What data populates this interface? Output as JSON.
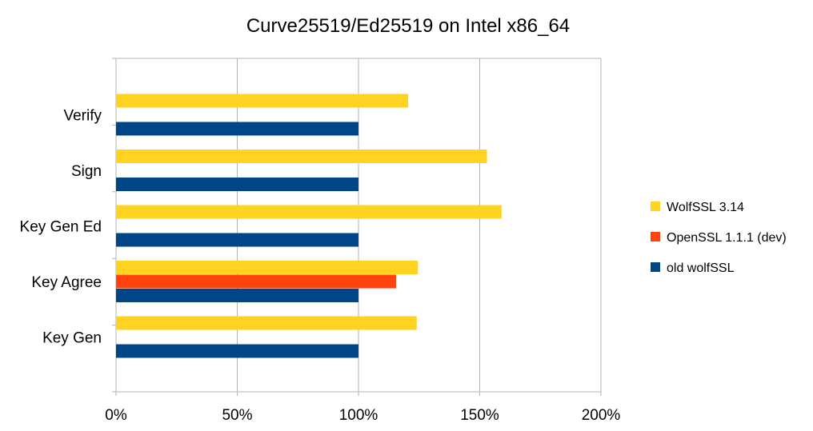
{
  "chart_data": {
    "type": "bar",
    "orientation": "horizontal",
    "title": "Curve25519/Ed25519 on Intel x86_64",
    "categories": [
      "Verify",
      "Sign",
      "Key Gen Ed",
      "Key Agree",
      "Key Gen"
    ],
    "xlim": [
      0,
      200
    ],
    "x_ticks": [
      0,
      50,
      100,
      150,
      200
    ],
    "x_tick_labels": [
      "0%",
      "50%",
      "100%",
      "150%",
      "200%"
    ],
    "grid": "vertical",
    "legend_position": "right",
    "series": [
      {
        "name": "WolfSSL 3.14",
        "color": "#FFD320",
        "values": [
          120.5,
          153,
          159,
          124.5,
          124
        ]
      },
      {
        "name": "OpenSSL 1.1.1 (dev)",
        "color": "#FF420E",
        "values": [
          null,
          null,
          null,
          115.5,
          null
        ]
      },
      {
        "name": "old wolfSSL",
        "color": "#004586",
        "values": [
          100,
          100,
          100,
          100,
          100
        ]
      }
    ]
  }
}
